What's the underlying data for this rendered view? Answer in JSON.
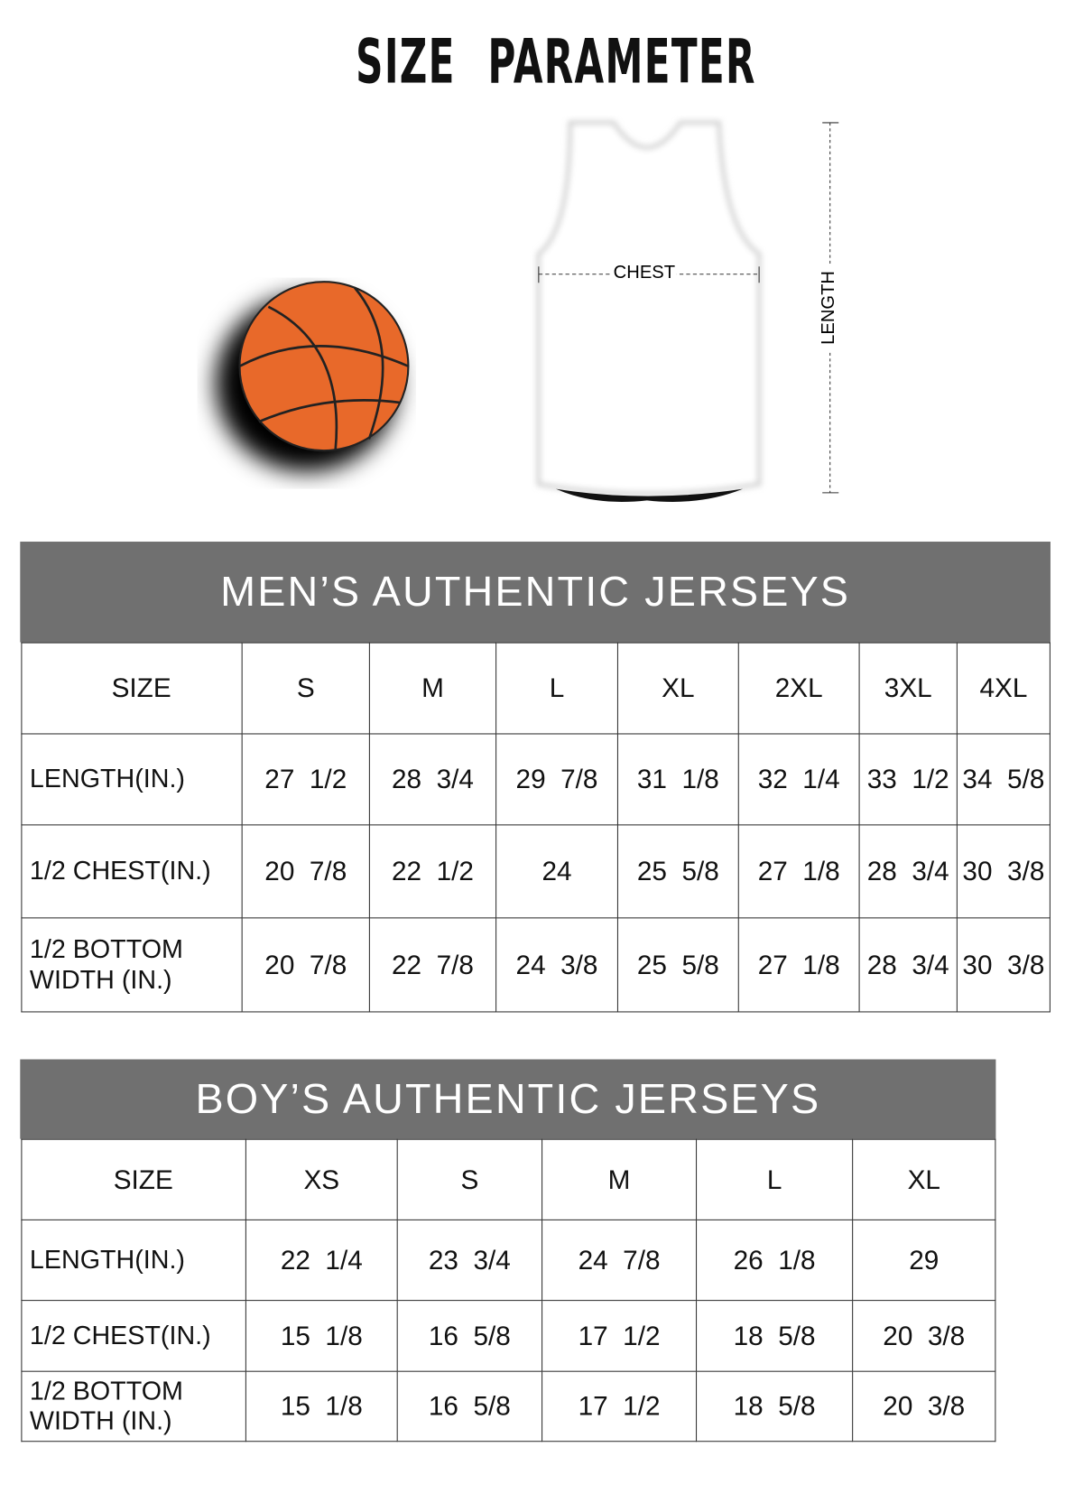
{
  "title": "SIZE PARAMETER",
  "diagram": {
    "chest_label": "CHEST",
    "length_label": "LENGTH"
  },
  "men": {
    "heading": "MEN’S AUTHENTIC JERSEYS",
    "columns": [
      "SIZE",
      "S",
      "M",
      "L",
      "XL",
      "2XL",
      "3XL",
      "4XL"
    ],
    "rows": [
      {
        "label": "LENGTH(IN.)",
        "values": [
          "27  1/2",
          "28  3/4",
          "29  7/8",
          "31  1/8",
          "32  1/4",
          "33  1/2",
          "34  5/8"
        ]
      },
      {
        "label": "1/2 CHEST(IN.)",
        "values": [
          "20  7/8",
          "22  1/2",
          "24",
          "25  5/8",
          "27  1/8",
          "28  3/4",
          "30  3/8"
        ]
      },
      {
        "label": "1/2 BOTTOM WIDTH  (IN.)",
        "values": [
          "20  7/8",
          "22  7/8",
          "24  3/8",
          "25  5/8",
          "27  1/8",
          "28  3/4",
          "30  3/8"
        ]
      }
    ]
  },
  "boys": {
    "heading": "BOY’S AUTHENTIC JERSEYS",
    "columns": [
      "SIZE",
      "XS",
      "S",
      "M",
      "L",
      "XL"
    ],
    "rows": [
      {
        "label": "LENGTH(IN.)",
        "values": [
          "22  1/4",
          "23  3/4",
          "24  7/8",
          "26  1/8",
          "29"
        ]
      },
      {
        "label": "1/2 CHEST(IN.)",
        "values": [
          "15  1/8",
          "16  5/8",
          "17  1/2",
          "18  5/8",
          "20  3/8"
        ]
      },
      {
        "label": "1/2 BOTTOM WIDTH  (IN.)",
        "values": [
          "15  1/8",
          "16  5/8",
          "17  1/2",
          "18  5/8",
          "20  3/8"
        ]
      }
    ]
  },
  "colors": {
    "header_bg": "#707070",
    "ball": "#e8692a"
  }
}
